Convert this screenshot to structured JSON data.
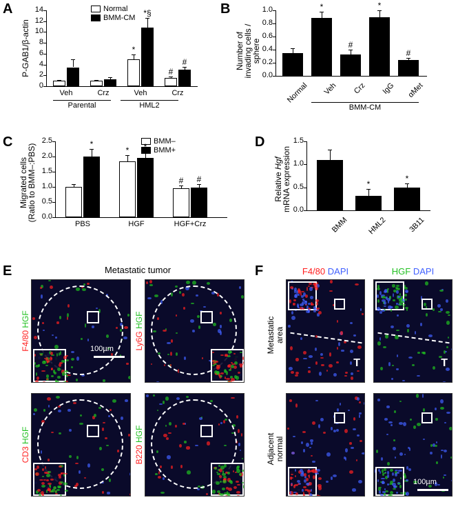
{
  "panelA": {
    "label": "A",
    "ylabel": "P-GAB1/β-actin",
    "ymax": 14,
    "ytick_step": 2,
    "legend": [
      {
        "label": "Normal",
        "color": "#ffffff"
      },
      {
        "label": "BMM-CM",
        "color": "#000000"
      }
    ],
    "groups": [
      {
        "label": "Veh",
        "white": 1.0,
        "black": 3.5,
        "white_err": 0.2,
        "black_err": 1.5
      },
      {
        "label": "Crz",
        "white": 1.0,
        "black": 1.3,
        "white_err": 0.2,
        "black_err": 0.4
      },
      {
        "label": "Veh",
        "white": 5.0,
        "black": 10.8,
        "white_err": 0.8,
        "black_err": 1.8,
        "white_sig": "*",
        "black_sig": "*§"
      },
      {
        "label": "Crz",
        "white": 1.5,
        "black": 3.0,
        "white_err": 0.3,
        "black_err": 0.6,
        "white_sig": "#",
        "black_sig": "#"
      }
    ],
    "group_labels": [
      "Parental",
      "HML2"
    ]
  },
  "panelB": {
    "label": "B",
    "ylabel": "Number of\ninvading cells /\nsphere",
    "ymax": 1.0,
    "ytick_step": 0.2,
    "bars": [
      {
        "label": "Normal",
        "val": 0.35,
        "err": 0.07
      },
      {
        "label": "Veh",
        "val": 0.88,
        "err": 0.1,
        "sig": "*"
      },
      {
        "label": "Crz",
        "val": 0.33,
        "err": 0.07,
        "sig": "#"
      },
      {
        "label": "IgG",
        "val": 0.9,
        "err": 0.1,
        "sig": "*"
      },
      {
        "label": "αMet",
        "val": 0.24,
        "err": 0.03,
        "sig": "#"
      }
    ],
    "group_label": "BMM-CM"
  },
  "panelC": {
    "label": "C",
    "ylabel": "Migrated cells\n(Ratio to BMM–:PBS)",
    "ymax": 2.5,
    "ytick_step": 0.5,
    "legend": [
      {
        "label": "BMM–",
        "color": "#ffffff"
      },
      {
        "label": "BMM+",
        "color": "#000000"
      }
    ],
    "groups": [
      {
        "label": "PBS",
        "white": 1.0,
        "black": 2.0,
        "white_err": 0.1,
        "black_err": 0.25,
        "black_sig": "*"
      },
      {
        "label": "HGF",
        "white": 1.85,
        "black": 1.95,
        "white_err": 0.2,
        "black_err": 0.2,
        "white_sig": "*",
        "black_sig": "*"
      },
      {
        "label": "HGF+Crz",
        "white": 0.95,
        "black": 0.98,
        "white_err": 0.1,
        "black_err": 0.1,
        "white_sig": "#",
        "black_sig": "#"
      }
    ]
  },
  "panelD": {
    "label": "D",
    "ylabel": "Relative Hgf\nmRNA expression",
    "ymax": 1.5,
    "ytick_step": 0.5,
    "bars": [
      {
        "label": "BMM",
        "val": 1.1,
        "err": 0.22
      },
      {
        "label": "HML2",
        "val": 0.32,
        "err": 0.14,
        "sig": "*"
      },
      {
        "label": "3B11",
        "val": 0.5,
        "err": 0.09,
        "sig": "*"
      }
    ]
  },
  "panelE": {
    "label": "E",
    "title": "Metastatic tumor",
    "scale": "100µm",
    "panels": [
      {
        "side_label": "F4/80 HGF",
        "red": "F4/80",
        "green": "HGF"
      },
      {
        "side_label": "Ly6G HGF",
        "red": "Ly6G",
        "green": "HGF"
      },
      {
        "side_label": "CD3 HGF",
        "red": "CD3",
        "green": "HGF"
      },
      {
        "side_label": "B220 HGF",
        "red": "B220",
        "green": "HGF"
      }
    ]
  },
  "panelF": {
    "label": "F",
    "scale": "100µm",
    "header_labels": [
      {
        "text": "F4/80",
        "color": "#ff2020"
      },
      {
        "text": "DAPI",
        "color": "#4060ff"
      },
      {
        "text": "HGF",
        "color": "#20c020"
      },
      {
        "text": "DAPI",
        "color": "#4060ff"
      }
    ],
    "rows": [
      {
        "label": "Metastatic\narea"
      },
      {
        "label": "Adjacent\nnormal"
      }
    ]
  },
  "colors": {
    "red": "#ff2020",
    "green": "#20c020",
    "blue": "#4060ff"
  }
}
